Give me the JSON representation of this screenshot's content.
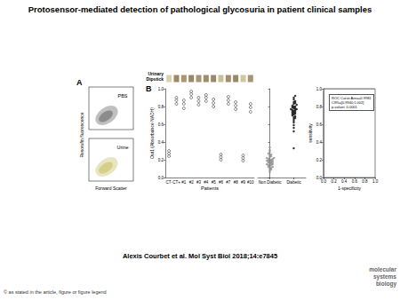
{
  "title": "Protosensor-mediated detection of pathological glycosuria in patient clinical samples",
  "panel_a": {
    "label": "A",
    "y_label": "Resorufin fluorescence",
    "x_label": "Forward Scatter",
    "plots": [
      {
        "name": "PBS",
        "color": "#8c8c8c"
      },
      {
        "name": "Urine",
        "color": "#d6cf8c"
      }
    ]
  },
  "panel_b": {
    "label": "B",
    "dipstick": {
      "label": "Urinary Dipstick",
      "colors": [
        "#cfc79a",
        "#8a6a3e",
        "#9a7a4a",
        "#7d6a45",
        "#8d7a52",
        "#86703f",
        "#7e6c48",
        "#b9b27f",
        "#8a7248",
        "#7c6a44",
        "#c2ba86",
        "#8f7a50"
      ]
    },
    "roc_annotation": [
      "ROC Curve Area=0.9981",
      "CI95=[0.9940;1.002]",
      "p-value< 0.0001"
    ]
  },
  "chart_data": [
    {
      "type": "scatter",
      "x_label": "Patients",
      "y_label": "Out1 (Absorbance NADH)",
      "categories": [
        "CT-",
        "CT+",
        "#1",
        "#2",
        "#3",
        "#4",
        "#5",
        "#6",
        "#7",
        "#8",
        "#9",
        "#10"
      ],
      "values": [
        [
          0.24,
          0.27,
          0.3
        ],
        [
          0.83,
          0.87,
          0.9
        ],
        [
          0.78,
          0.83,
          0.87
        ],
        [
          0.9,
          0.94,
          0.97
        ],
        [
          0.82,
          0.86,
          0.9
        ],
        [
          0.86,
          0.9,
          0.93
        ],
        [
          0.8,
          0.84,
          0.88
        ],
        [
          0.2,
          0.23,
          0.26
        ],
        [
          0.83,
          0.87,
          0.91
        ],
        [
          0.77,
          0.81,
          0.85
        ],
        [
          0.19,
          0.22,
          0.25
        ],
        [
          0.74,
          0.79,
          0.83
        ]
      ],
      "color": "#000000",
      "marker": "circle_open",
      "ylim": [
        0,
        1
      ],
      "yticks": [
        {
          "value": 0,
          "label": "0.0"
        },
        {
          "value": 0.2,
          "label": "0.2"
        },
        {
          "value": 0.4,
          "label": "0.4"
        },
        {
          "value": 0.6,
          "label": "0.6"
        },
        {
          "value": 0.8,
          "label": "0.8"
        },
        {
          "value": 1,
          "label": "1.0"
        }
      ],
      "grid": false
    },
    {
      "type": "scatter",
      "categories": [
        "Non Diabetic",
        "Diabetic"
      ],
      "values": [
        [
          0.06,
          0.08,
          0.09,
          0.1,
          0.11,
          0.12,
          0.12,
          0.13,
          0.14,
          0.14,
          0.15,
          0.15,
          0.16,
          0.16,
          0.17,
          0.17,
          0.18,
          0.18,
          0.18,
          0.19,
          0.19,
          0.2,
          0.2,
          0.21,
          0.21,
          0.22,
          0.22,
          0.23,
          0.24,
          0.25,
          0.26,
          0.27,
          0.29,
          0.31,
          0.34
        ],
        [
          0.33,
          0.52,
          0.56,
          0.59,
          0.62,
          0.64,
          0.66,
          0.67,
          0.68,
          0.69,
          0.7,
          0.71,
          0.72,
          0.72,
          0.73,
          0.74,
          0.74,
          0.75,
          0.76,
          0.76,
          0.77,
          0.77,
          0.78,
          0.78,
          0.79,
          0.8,
          0.8,
          0.81,
          0.82,
          0.83,
          0.84,
          0.85,
          0.86,
          0.88,
          0.9,
          0.92
        ]
      ],
      "colors": [
        "#8c8c8c",
        "#000000"
      ],
      "marker": "circle",
      "ylim": [
        0,
        1
      ],
      "yticks": [
        0,
        0.2,
        0.4,
        0.6,
        0.8,
        1
      ],
      "tick_labels": "x",
      "grid": false
    },
    {
      "type": "line",
      "x_label": "1-specificity",
      "y_label": "sensitivity",
      "x": [
        0,
        0,
        0.02,
        1
      ],
      "values": [
        0,
        0.97,
        1,
        1
      ],
      "color": "#888888",
      "xlim": [
        0,
        1
      ],
      "ylim": [
        0,
        1
      ],
      "xticks": [
        {
          "value": 0,
          "label": "0.0"
        },
        {
          "value": 0.2,
          "label": "0.2"
        },
        {
          "value": 0.4,
          "label": "0.4"
        },
        {
          "value": 0.6,
          "label": "0.6"
        },
        {
          "value": 0.8,
          "label": "0.8"
        },
        {
          "value": 1,
          "label": "1.0"
        }
      ],
      "yticks": [
        {
          "value": 0,
          "label": "0.0"
        },
        {
          "value": 0.2,
          "label": "0.2"
        },
        {
          "value": 0.4,
          "label": "0.4"
        },
        {
          "value": 0.6,
          "label": "0.6"
        },
        {
          "value": 0.8,
          "label": "0.8"
        },
        {
          "value": 1,
          "label": "1.0"
        }
      ],
      "grid": false
    }
  ],
  "citation": "Alexis Courbet et al. Mol Syst Biol 2018;14:e7845",
  "copyright": "© as stated in the article, figure or figure legend",
  "logo": "molecular systems biology"
}
